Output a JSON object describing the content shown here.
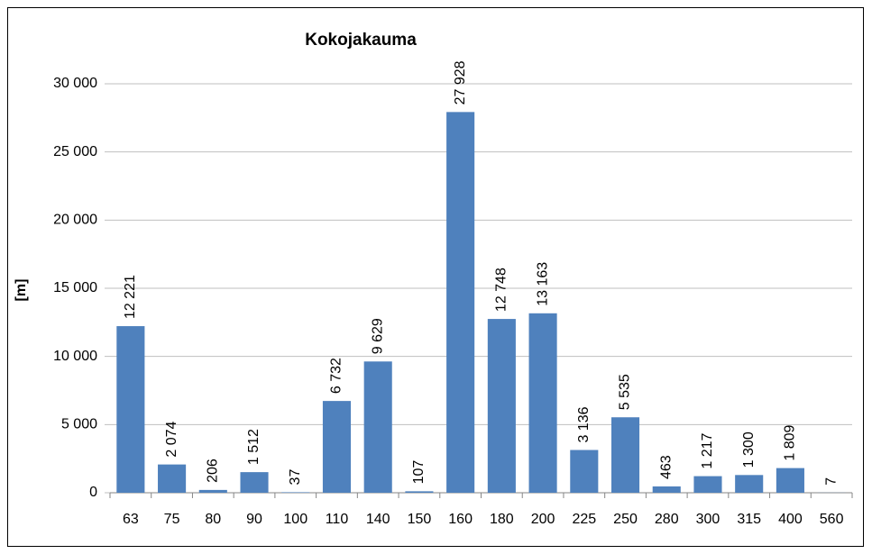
{
  "chart_data": {
    "type": "bar",
    "title": "Kokojakauma",
    "y_label": "[m]",
    "categories": [
      "63",
      "75",
      "80",
      "90",
      "100",
      "110",
      "140",
      "150",
      "160",
      "180",
      "200",
      "225",
      "250",
      "280",
      "300",
      "315",
      "400",
      "560"
    ],
    "values": [
      12221,
      2074,
      206,
      1512,
      37,
      6732,
      9629,
      107,
      27928,
      12748,
      13163,
      3136,
      5535,
      463,
      1217,
      1300,
      1809,
      7
    ],
    "value_labels": [
      "12 221",
      "2 074",
      "206",
      "1 512",
      "37",
      "6 732",
      "9 629",
      "107",
      "27 928",
      "12 748",
      "13 163",
      "3 136",
      "5 535",
      "463",
      "1 217",
      "1 300",
      "1 809",
      "7"
    ],
    "color": "#4f81bd",
    "ylim": [
      0,
      30000
    ],
    "yticks": [
      {
        "value": 0,
        "label": "0"
      },
      {
        "value": 5000,
        "label": "5 000"
      },
      {
        "value": 10000,
        "label": "10 000"
      },
      {
        "value": 15000,
        "label": "15 000"
      },
      {
        "value": 20000,
        "label": "20 000"
      },
      {
        "value": 25000,
        "label": "25 000"
      },
      {
        "value": 30000,
        "label": "30 000"
      }
    ],
    "grid": true
  }
}
